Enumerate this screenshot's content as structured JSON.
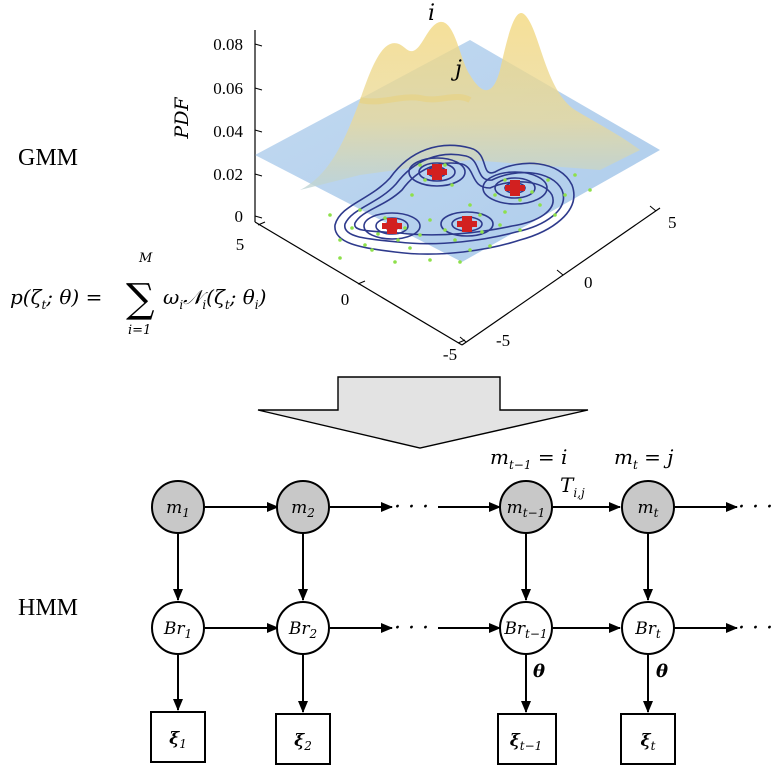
{
  "gmm": {
    "label": "GMM",
    "pdf_axis_label": "PDF",
    "pdf_ticks": [
      "0.08",
      "0.06",
      "0.04",
      "0.02",
      "0"
    ],
    "left_axis_ticks": [
      "5",
      "0",
      "-5"
    ],
    "right_axis_ticks": [
      "5",
      "0",
      "-5"
    ],
    "peak_labels": [
      "i",
      "j"
    ],
    "formula": {
      "lhs": "p(ζ",
      "lhs_sub": "t",
      "lhs_rest": "; θ) =",
      "sum": "∑",
      "sum_top": "M",
      "sum_bottom": "i=1",
      "rhs": "ω",
      "rhs_sub_i": "i",
      "rhs_n": "𝒩",
      "rhs_args": "(ζ",
      "rhs_args_rest": "; θ",
      "rhs_close": ")"
    }
  },
  "hmm": {
    "label": "HMM",
    "state_top_labels": {
      "prev": "m",
      "prev_sub": "t−1",
      "prev_eq": " = i",
      "cur": "m",
      "cur_sub": "t",
      "cur_eq": " = j"
    },
    "transition_label": "T",
    "transition_sub": "i,j",
    "columns": [
      {
        "m": "m",
        "m_sub": "1",
        "br": "Br",
        "br_sub": "1",
        "xi": "ξ",
        "xi_sub": "1"
      },
      {
        "m": "m",
        "m_sub": "2",
        "br": "Br",
        "br_sub": "2",
        "xi": "ξ",
        "xi_sub": "2"
      },
      {
        "m": "m",
        "m_sub": "t−1",
        "br": "Br",
        "br_sub": "t−1",
        "xi": "ξ",
        "xi_sub": "t−1"
      },
      {
        "m": "m",
        "m_sub": "t",
        "br": "Br",
        "br_sub": "t",
        "xi": "ξ",
        "xi_sub": "t"
      }
    ],
    "ellipsis": "· · ·",
    "theta": "θ"
  }
}
